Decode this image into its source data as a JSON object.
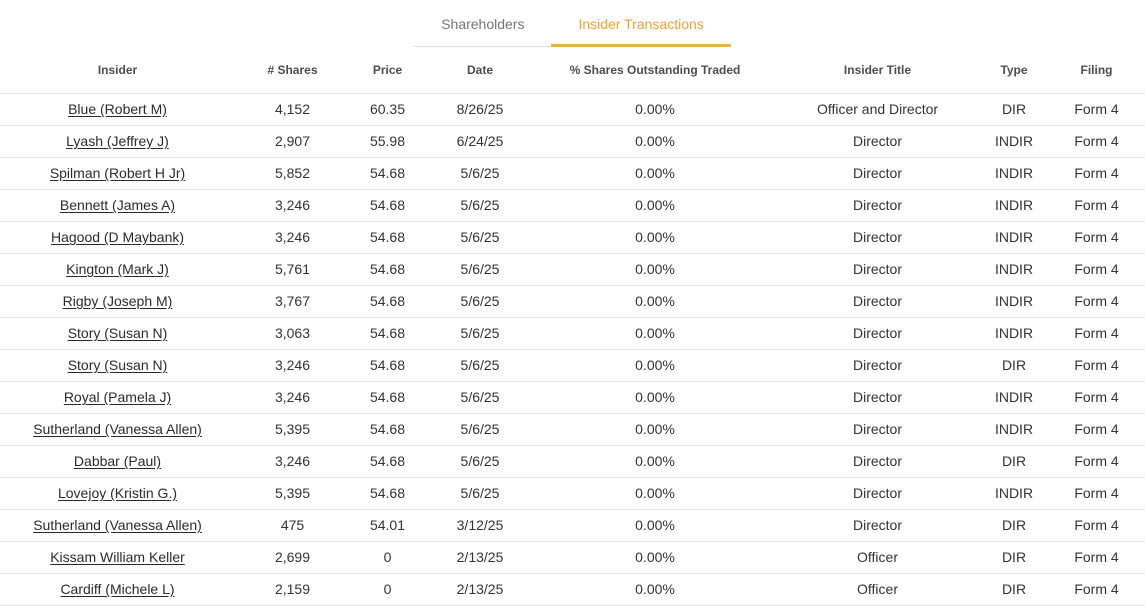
{
  "colors": {
    "accent_text": "#f2a232",
    "accent_underline": "#e9b04a",
    "inactive_tab": "#757575",
    "row_border": "#e3e3e3"
  },
  "tabs": [
    {
      "label": "Shareholders",
      "active": false
    },
    {
      "label": "Insider Transactions",
      "active": true
    }
  ],
  "table": {
    "columns": [
      "Insider",
      "# Shares",
      "Price",
      "Date",
      "% Shares Outstanding Traded",
      "Insider Title",
      "Type",
      "Filing"
    ],
    "rows": [
      {
        "cells": [
          "Blue (Robert M)",
          "4,152",
          "60.35",
          "8/26/25",
          "0.00%",
          "Officer and Director",
          "DIR",
          "Form 4"
        ]
      },
      {
        "cells": [
          "Lyash (Jeffrey J)",
          "2,907",
          "55.98",
          "6/24/25",
          "0.00%",
          "Director",
          "INDIR",
          "Form 4"
        ]
      },
      {
        "cells": [
          "Spilman (Robert H Jr)",
          "5,852",
          "54.68",
          "5/6/25",
          "0.00%",
          "Director",
          "INDIR",
          "Form 4"
        ]
      },
      {
        "cells": [
          "Bennett (James A)",
          "3,246",
          "54.68",
          "5/6/25",
          "0.00%",
          "Director",
          "INDIR",
          "Form 4"
        ]
      },
      {
        "cells": [
          "Hagood (D Maybank)",
          "3,246",
          "54.68",
          "5/6/25",
          "0.00%",
          "Director",
          "INDIR",
          "Form 4"
        ]
      },
      {
        "cells": [
          "Kington (Mark J)",
          "5,761",
          "54.68",
          "5/6/25",
          "0.00%",
          "Director",
          "INDIR",
          "Form 4"
        ]
      },
      {
        "cells": [
          "Rigby (Joseph M)",
          "3,767",
          "54.68",
          "5/6/25",
          "0.00%",
          "Director",
          "INDIR",
          "Form 4"
        ]
      },
      {
        "cells": [
          "Story (Susan N)",
          "3,063",
          "54.68",
          "5/6/25",
          "0.00%",
          "Director",
          "INDIR",
          "Form 4"
        ]
      },
      {
        "cells": [
          "Story (Susan N)",
          "3,246",
          "54.68",
          "5/6/25",
          "0.00%",
          "Director",
          "DIR",
          "Form 4"
        ]
      },
      {
        "cells": [
          "Royal (Pamela J)",
          "3,246",
          "54.68",
          "5/6/25",
          "0.00%",
          "Director",
          "INDIR",
          "Form 4"
        ]
      },
      {
        "cells": [
          "Sutherland (Vanessa Allen)",
          "5,395",
          "54.68",
          "5/6/25",
          "0.00%",
          "Director",
          "INDIR",
          "Form 4"
        ]
      },
      {
        "cells": [
          "Dabbar (Paul)",
          "3,246",
          "54.68",
          "5/6/25",
          "0.00%",
          "Director",
          "DIR",
          "Form 4"
        ]
      },
      {
        "cells": [
          "Lovejoy (Kristin G.)",
          "5,395",
          "54.68",
          "5/6/25",
          "0.00%",
          "Director",
          "INDIR",
          "Form 4"
        ]
      },
      {
        "cells": [
          "Sutherland (Vanessa Allen)",
          "475",
          "54.01",
          "3/12/25",
          "0.00%",
          "Director",
          "DIR",
          "Form 4"
        ]
      },
      {
        "cells": [
          "Kissam William Keller",
          "2,699",
          "0",
          "2/13/25",
          "0.00%",
          "Officer",
          "DIR",
          "Form 4"
        ]
      },
      {
        "cells": [
          "Cardiff (Michele L)",
          "2,159",
          "0",
          "2/13/25",
          "0.00%",
          "Officer",
          "DIR",
          "Form 4"
        ]
      }
    ]
  }
}
